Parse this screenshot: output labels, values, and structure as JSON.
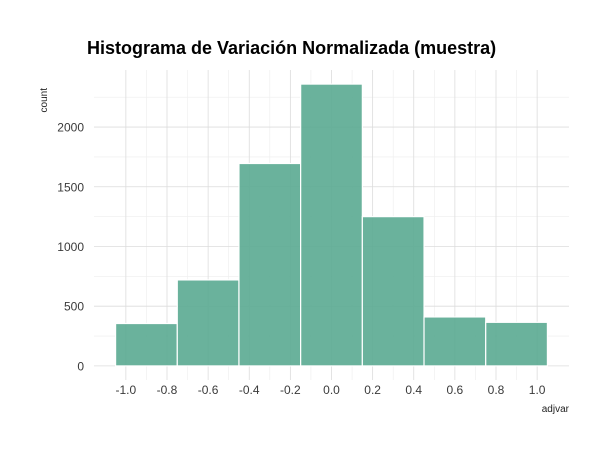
{
  "chart_data": {
    "type": "bar",
    "title": "Histograma de Variación Normalizada (muestra)",
    "xlabel": "adjvar",
    "ylabel": "count",
    "bins": [
      {
        "x0": -1.05,
        "x1": -0.75,
        "count": 355
      },
      {
        "x0": -0.75,
        "x1": -0.45,
        "count": 720
      },
      {
        "x0": -0.45,
        "x1": -0.15,
        "count": 1695
      },
      {
        "x0": -0.15,
        "x1": 0.15,
        "count": 2360
      },
      {
        "x0": 0.15,
        "x1": 0.45,
        "count": 1250
      },
      {
        "x0": 0.45,
        "x1": 0.75,
        "count": 410
      },
      {
        "x0": 0.75,
        "x1": 1.05,
        "count": 365
      }
    ],
    "xlim": [
      -1.155,
      1.155
    ],
    "ylim": [
      -118,
      2478
    ],
    "x_ticks": [
      {
        "value": -1.0,
        "label": "-1.0"
      },
      {
        "value": -0.8,
        "label": "-0.8"
      },
      {
        "value": -0.6,
        "label": "-0.6"
      },
      {
        "value": -0.4,
        "label": "-0.4"
      },
      {
        "value": -0.2,
        "label": "-0.2"
      },
      {
        "value": 0.0,
        "label": "0.0"
      },
      {
        "value": 0.2,
        "label": "0.2"
      },
      {
        "value": 0.4,
        "label": "0.4"
      },
      {
        "value": 0.6,
        "label": "0.6"
      },
      {
        "value": 0.8,
        "label": "0.8"
      },
      {
        "value": 1.0,
        "label": "1.0"
      }
    ],
    "y_ticks": [
      {
        "value": 0,
        "label": "0"
      },
      {
        "value": 500,
        "label": "500"
      },
      {
        "value": 1000,
        "label": "1000"
      },
      {
        "value": 1500,
        "label": "1500"
      },
      {
        "value": 2000,
        "label": "2000"
      }
    ],
    "grid": true,
    "bar_color": "#5aaa91"
  }
}
